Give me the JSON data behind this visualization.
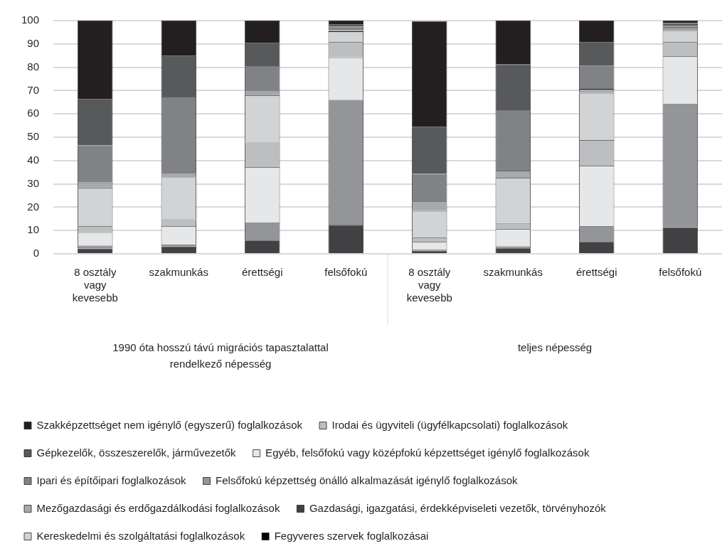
{
  "chart_data": {
    "type": "bar",
    "stacked": true,
    "categories": [
      "8 osztály vagy kevesebb",
      "szakmunkás",
      "érettségi",
      "felsőfokú",
      "8 osztály vagy kevesebb",
      "szakmunkás",
      "érettségi",
      "felsőfokú"
    ],
    "annotations": [
      "1990 óta hosszú távú migrációs tapasztalattal rendelkező népesség",
      "teljes népesség"
    ],
    "ylim": [
      0,
      100
    ],
    "yticks": [
      0,
      10,
      20,
      30,
      40,
      50,
      60,
      70,
      80,
      90,
      100
    ],
    "grid": "y",
    "legend": "bottom",
    "series": [
      {
        "name": "Fegyveres szervek foglalkozásai",
        "color": "#000000",
        "values": [
          0.3,
          0.3,
          0,
          0.3,
          null,
          0.3,
          0.3,
          0
        ]
      },
      {
        "name": "Gazdasági, igazgatási, érdekképviseleti vezetők, törvényhozók",
        "color": "#414042",
        "values": [
          2.0,
          2.9,
          5.7,
          12.1,
          1.3,
          2.1,
          4.8,
          11.4
        ]
      },
      {
        "name": "Felsőfokú képzettség önálló alkalmazását igénylő foglalkozások",
        "color": "#939598",
        "values": [
          1.2,
          0.7,
          7.8,
          53.6,
          0.6,
          0.8,
          6.7,
          53.0
        ]
      },
      {
        "name": "Egyéb, felsőfokú vagy középfokú képzettséget igénylő foglalkozások",
        "color": "#e6e7e8",
        "values": [
          5.7,
          8.0,
          23.7,
          18.2,
          3.2,
          7.4,
          26.0,
          20.3
        ]
      },
      {
        "name": "Irodai és ügyviteli (ügyfélkapcsolati) foglalkozások",
        "color": "#bcbec0",
        "values": [
          2.6,
          2.9,
          10.5,
          6.6,
          1.8,
          2.6,
          11.0,
          6.1
        ]
      },
      {
        "name": "Kereskedelmi és szolgáltatási foglalkozások",
        "color": "#d1d3d4",
        "values": [
          16.6,
          18.0,
          20.3,
          4.6,
          11.5,
          19.4,
          20.2,
          4.8
        ]
      },
      {
        "name": "Mezőgazdasági és erdőgazdálkodási foglalkozások",
        "color": "#a7a9ac",
        "values": [
          2.2,
          1.9,
          1.6,
          0.5,
          4.1,
          3.1,
          1.7,
          0.8
        ]
      },
      {
        "name": "Ipari és építőipari foglalkozások",
        "color": "#808285",
        "values": [
          15.9,
          32.7,
          10.8,
          1.5,
          11.8,
          25.8,
          9.9,
          1.3
        ]
      },
      {
        "name": "Gépkezelők, összeszerelők, járművezetők",
        "color": "#58595b",
        "values": [
          19.9,
          17.4,
          10.1,
          1.0,
          20.2,
          19.8,
          10.2,
          1.2
        ]
      },
      {
        "name": "Szakképzettséget nem igénylő (egyszerű) foglalkozások",
        "color": "#231f20",
        "values": [
          33.6,
          15.2,
          9.5,
          1.6,
          45.3,
          18.7,
          9.2,
          1.1
        ]
      }
    ]
  }
}
